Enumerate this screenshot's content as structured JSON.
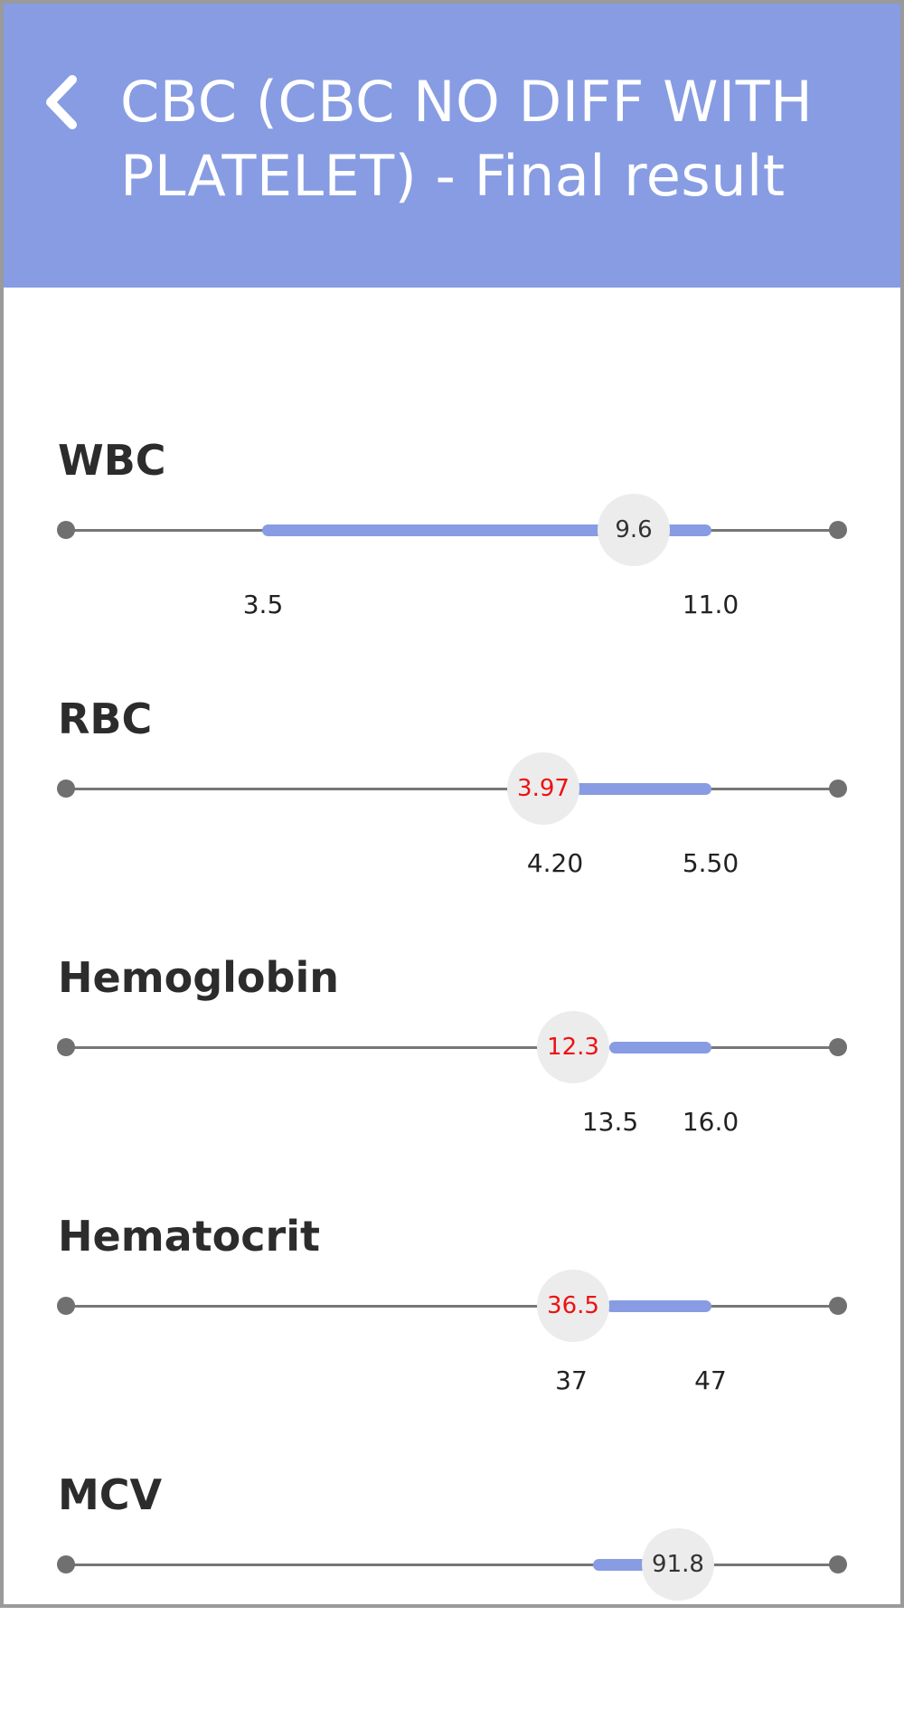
{
  "header": {
    "title": "CBC (CBC NO DIFF WITH PLATELET) - Final result",
    "back_icon": "chevron-left-icon",
    "background": "#879ce2"
  },
  "colors": {
    "range_bar": "#879ce2",
    "abnormal_value": "#ee1111",
    "normal_value": "#333333"
  },
  "results": [
    {
      "name": "WBC",
      "value": "9.6",
      "low": "3.5",
      "high": "11.0",
      "abnormal": false
    },
    {
      "name": "RBC",
      "value": "3.97",
      "low": "4.20",
      "high": "5.50",
      "abnormal": true
    },
    {
      "name": "Hemoglobin",
      "value": "12.3",
      "low": "13.5",
      "high": "16.0",
      "abnormal": true
    },
    {
      "name": "Hematocrit",
      "value": "36.5",
      "low": "37",
      "high": "47",
      "abnormal": true
    },
    {
      "name": "MCV",
      "value": "91.8",
      "low": "",
      "high": "",
      "abnormal": false
    }
  ]
}
